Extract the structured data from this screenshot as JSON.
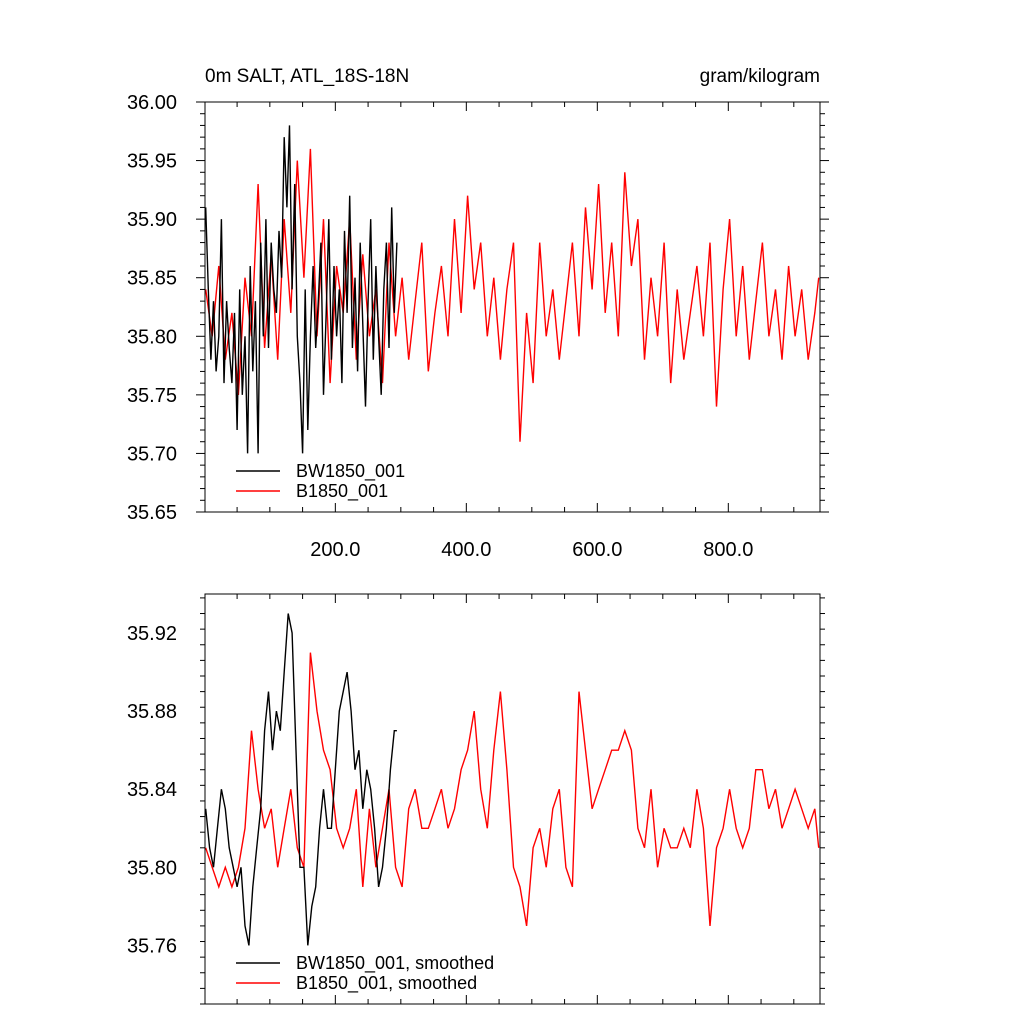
{
  "chart_data": [
    {
      "type": "line",
      "title": "0m SALT, ATL_18S-18N",
      "units": "gram/kilogram",
      "xlabel": "",
      "ylabel": "",
      "xlim": [
        1,
        940
      ],
      "ylim": [
        35.65,
        36.0
      ],
      "xtick_values": [
        200,
        400,
        600,
        800
      ],
      "xtick_labels": [
        "200.0",
        "400.0",
        "600.0",
        "800.0"
      ],
      "ytick_values": [
        35.65,
        35.7,
        35.75,
        35.8,
        35.85,
        35.9,
        35.95,
        36.0
      ],
      "ytick_labels": [
        "35.65",
        "35.70",
        "35.75",
        "35.80",
        "35.85",
        "35.90",
        "35.95",
        "36.00"
      ],
      "legend_position": "bottom-left",
      "grid": false,
      "series": [
        {
          "name": "BW1850_001",
          "color": "#000000",
          "x": [
            2,
            6,
            10,
            14,
            18,
            22,
            26,
            30,
            34,
            38,
            42,
            46,
            50,
            54,
            58,
            62,
            66,
            70,
            74,
            78,
            82,
            86,
            90,
            94,
            98,
            102,
            106,
            110,
            114,
            118,
            122,
            126,
            130,
            134,
            138,
            142,
            146,
            150,
            154,
            158,
            162,
            166,
            170,
            174,
            178,
            182,
            186,
            190,
            194,
            198,
            202,
            206,
            210,
            214,
            218,
            222,
            226,
            230,
            234,
            238,
            242,
            246,
            250,
            254,
            258,
            262,
            266,
            270,
            274,
            278,
            282,
            286,
            290,
            294
          ],
          "values": [
            35.91,
            35.84,
            35.78,
            35.83,
            35.77,
            35.8,
            35.9,
            35.76,
            35.83,
            35.79,
            35.76,
            35.82,
            35.72,
            35.84,
            35.75,
            35.8,
            35.7,
            35.86,
            35.77,
            35.83,
            35.7,
            35.88,
            35.8,
            35.9,
            35.79,
            35.88,
            35.84,
            35.82,
            35.89,
            35.85,
            35.97,
            35.91,
            35.98,
            35.84,
            35.93,
            35.8,
            35.76,
            35.7,
            35.84,
            35.72,
            35.8,
            35.86,
            35.79,
            35.83,
            35.88,
            35.75,
            35.82,
            35.9,
            35.78,
            35.86,
            35.8,
            35.84,
            35.76,
            35.89,
            35.82,
            35.92,
            35.79,
            35.85,
            35.77,
            35.88,
            35.81,
            35.74,
            35.83,
            35.9,
            35.78,
            35.86,
            35.8,
            35.75,
            35.84,
            35.88,
            35.79,
            35.91,
            35.82,
            35.88
          ]
        },
        {
          "name": "B1850_001",
          "color": "#ff0000",
          "x": [
            2,
            12,
            22,
            32,
            42,
            52,
            62,
            72,
            82,
            92,
            102,
            112,
            122,
            132,
            142,
            152,
            162,
            172,
            182,
            192,
            202,
            212,
            222,
            232,
            242,
            252,
            262,
            272,
            282,
            292,
            302,
            312,
            322,
            332,
            342,
            352,
            362,
            372,
            382,
            392,
            402,
            412,
            422,
            432,
            442,
            452,
            462,
            472,
            482,
            492,
            502,
            512,
            522,
            532,
            542,
            552,
            562,
            572,
            582,
            592,
            602,
            612,
            622,
            632,
            642,
            652,
            662,
            672,
            682,
            692,
            702,
            712,
            722,
            732,
            742,
            752,
            762,
            772,
            782,
            792,
            802,
            812,
            822,
            832,
            842,
            852,
            862,
            872,
            882,
            892,
            902,
            912,
            922,
            932,
            938
          ],
          "values": [
            35.84,
            35.8,
            35.86,
            35.78,
            35.82,
            35.75,
            35.85,
            35.8,
            35.93,
            35.79,
            35.87,
            35.78,
            35.9,
            35.82,
            35.95,
            35.85,
            35.96,
            35.8,
            35.9,
            35.76,
            35.86,
            35.82,
            35.9,
            35.78,
            35.87,
            35.8,
            35.84,
            35.76,
            35.88,
            35.8,
            35.85,
            35.78,
            35.83,
            35.88,
            35.77,
            35.82,
            35.86,
            35.8,
            35.9,
            35.82,
            35.92,
            35.84,
            35.88,
            35.8,
            35.85,
            35.78,
            35.84,
            35.88,
            35.71,
            35.82,
            35.76,
            35.88,
            35.8,
            35.84,
            35.78,
            35.83,
            35.88,
            35.8,
            35.91,
            35.84,
            35.93,
            35.82,
            35.88,
            35.8,
            35.94,
            35.86,
            35.9,
            35.78,
            35.85,
            35.8,
            35.88,
            35.76,
            35.84,
            35.78,
            35.82,
            35.86,
            35.8,
            35.88,
            35.74,
            35.84,
            35.9,
            35.8,
            35.86,
            35.78,
            35.83,
            35.88,
            35.8,
            35.84,
            35.78,
            35.86,
            35.8,
            35.84,
            35.78,
            35.82,
            35.85
          ]
        }
      ]
    },
    {
      "type": "line",
      "title": "",
      "xlabel": "",
      "ylabel": "",
      "xlim": [
        1,
        940
      ],
      "ylim": [
        35.73,
        35.94
      ],
      "ytick_values": [
        35.76,
        35.8,
        35.84,
        35.88,
        35.92
      ],
      "ytick_labels": [
        "35.76",
        "35.80",
        "35.84",
        "35.88",
        "35.92"
      ],
      "legend_position": "bottom-left",
      "grid": false,
      "series": [
        {
          "name": "BW1850_001, smoothed",
          "color": "#000000",
          "x": [
            2,
            8,
            14,
            20,
            26,
            32,
            38,
            44,
            50,
            56,
            62,
            68,
            74,
            80,
            86,
            92,
            98,
            104,
            110,
            116,
            122,
            128,
            134,
            140,
            146,
            152,
            158,
            164,
            170,
            176,
            182,
            188,
            194,
            200,
            206,
            212,
            218,
            224,
            230,
            236,
            242,
            248,
            254,
            260,
            266,
            272,
            278,
            284,
            290,
            294
          ],
          "values": [
            35.83,
            35.81,
            35.8,
            35.82,
            35.84,
            35.83,
            35.81,
            35.8,
            35.79,
            35.8,
            35.77,
            35.76,
            35.79,
            35.81,
            35.83,
            35.87,
            35.89,
            35.86,
            35.88,
            35.87,
            35.9,
            35.93,
            35.92,
            35.86,
            35.8,
            35.8,
            35.76,
            35.78,
            35.79,
            35.82,
            35.84,
            35.82,
            35.82,
            35.85,
            35.88,
            35.89,
            35.9,
            35.88,
            35.85,
            35.86,
            35.83,
            35.85,
            35.84,
            35.82,
            35.79,
            35.8,
            35.82,
            35.85,
            35.87,
            35.87
          ]
        },
        {
          "name": "B1850_001, smoothed",
          "color": "#ff0000",
          "x": [
            2,
            12,
            22,
            32,
            42,
            52,
            62,
            72,
            82,
            92,
            102,
            112,
            122,
            132,
            142,
            152,
            162,
            172,
            182,
            192,
            202,
            212,
            222,
            232,
            242,
            252,
            262,
            272,
            282,
            292,
            302,
            312,
            322,
            332,
            342,
            352,
            362,
            372,
            382,
            392,
            402,
            412,
            422,
            432,
            442,
            452,
            462,
            472,
            482,
            492,
            502,
            512,
            522,
            532,
            542,
            552,
            562,
            572,
            582,
            592,
            602,
            612,
            622,
            632,
            642,
            652,
            662,
            672,
            682,
            692,
            702,
            712,
            722,
            732,
            742,
            752,
            762,
            772,
            782,
            792,
            802,
            812,
            822,
            832,
            842,
            852,
            862,
            872,
            882,
            892,
            902,
            912,
            922,
            932,
            938
          ],
          "values": [
            35.81,
            35.8,
            35.79,
            35.8,
            35.79,
            35.8,
            35.82,
            35.87,
            35.84,
            35.82,
            35.83,
            35.8,
            35.82,
            35.84,
            35.81,
            35.8,
            35.91,
            35.88,
            35.86,
            35.85,
            35.82,
            35.81,
            35.82,
            35.84,
            35.79,
            35.83,
            35.8,
            35.82,
            35.84,
            35.8,
            35.79,
            35.83,
            35.84,
            35.82,
            35.82,
            35.83,
            35.84,
            35.82,
            35.83,
            35.85,
            35.86,
            35.88,
            35.84,
            35.82,
            35.86,
            35.89,
            35.85,
            35.8,
            35.79,
            35.77,
            35.81,
            35.82,
            35.8,
            35.83,
            35.84,
            35.8,
            35.79,
            35.89,
            35.86,
            35.83,
            35.84,
            35.85,
            35.86,
            35.86,
            35.87,
            35.86,
            35.82,
            35.81,
            35.84,
            35.8,
            35.82,
            35.81,
            35.81,
            35.82,
            35.81,
            35.84,
            35.82,
            35.77,
            35.81,
            35.82,
            35.84,
            35.82,
            35.81,
            35.82,
            35.85,
            35.85,
            35.83,
            35.84,
            35.82,
            35.83,
            35.84,
            35.83,
            35.82,
            35.83,
            35.81
          ]
        }
      ]
    }
  ]
}
